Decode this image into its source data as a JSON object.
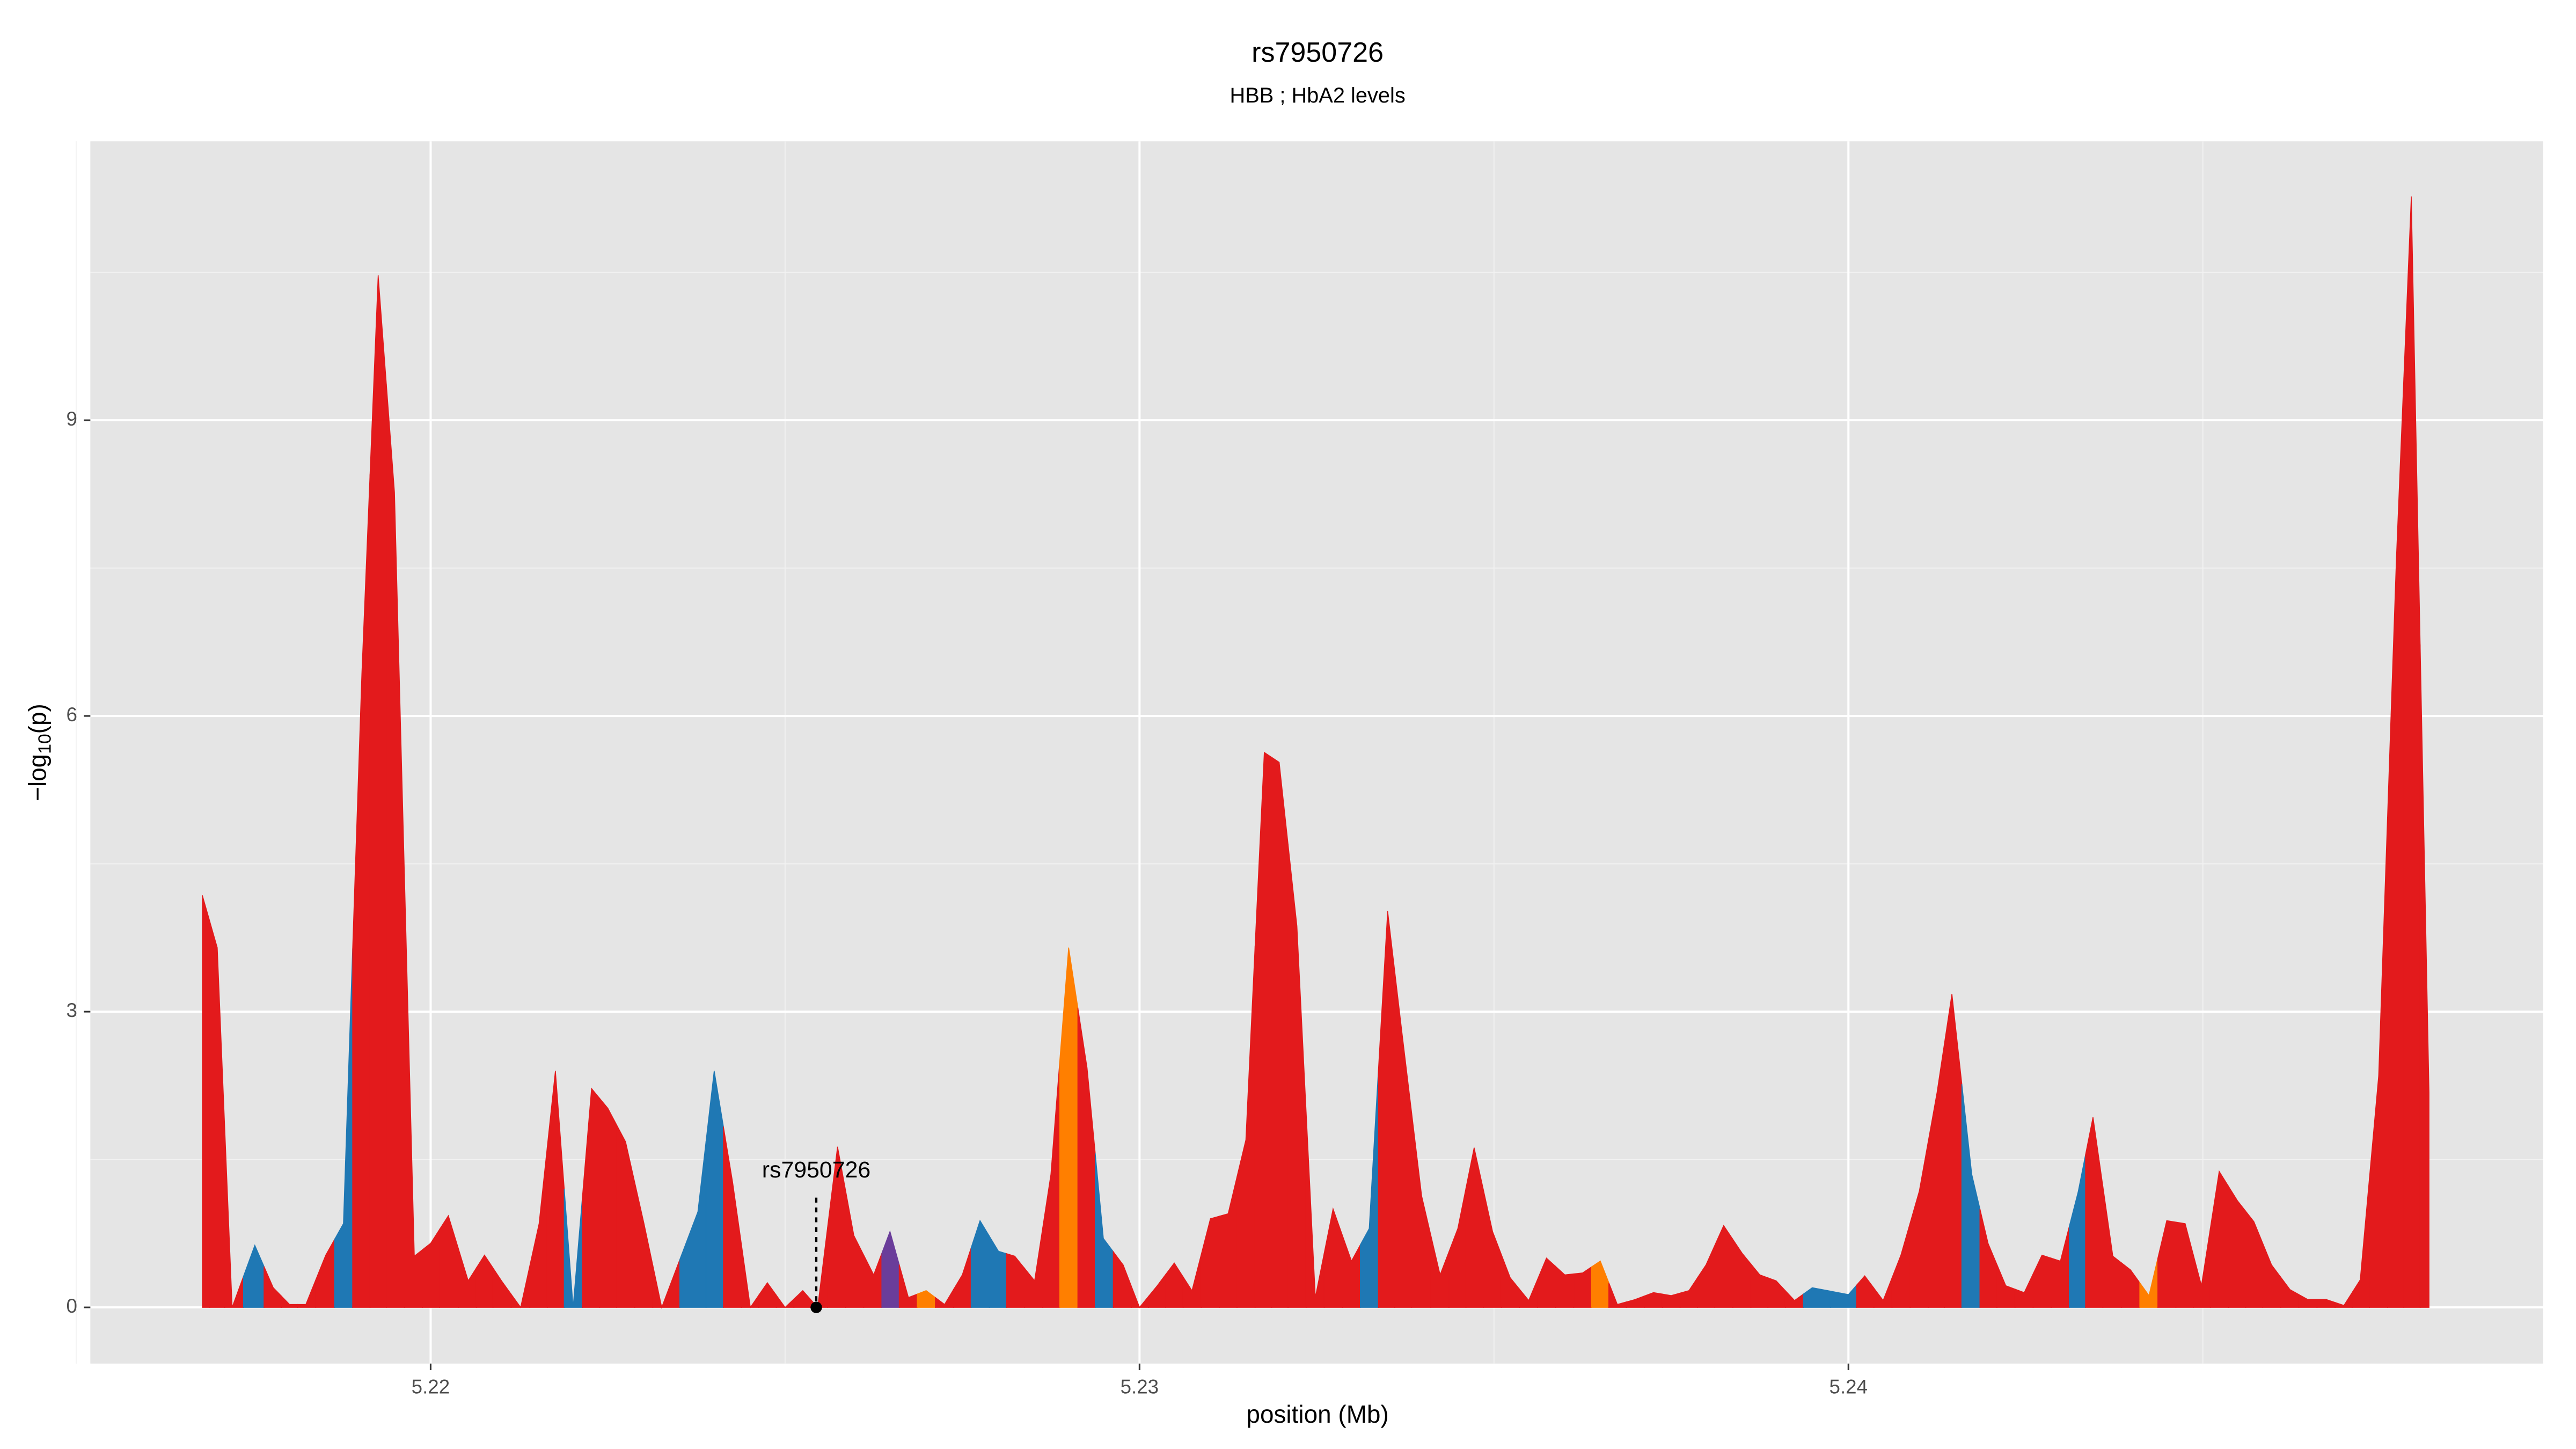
{
  "chart_data": {
    "type": "area",
    "title": "rs7950726",
    "subtitle": "HBB ; HbA2 levels",
    "xlabel": "position (Mb)",
    "ylabel": {
      "prefix": "−log",
      "subscript": "10",
      "suffix": "(p)"
    },
    "xlim": [
      5.2152,
      5.2498
    ],
    "ylim": [
      -0.57,
      11.83
    ],
    "xticks": [
      5.22,
      5.23,
      5.24
    ],
    "yticks": [
      0,
      3,
      6,
      9
    ],
    "x_minor_grid": [
      5.215,
      5.225,
      5.235,
      5.245
    ],
    "y_minor_grid": [
      1.5,
      4.5,
      7.5,
      10.5
    ],
    "grid": true,
    "series": [
      {
        "x": [
          5.21678,
          5.21699,
          5.2172,
          5.21752,
          5.21778,
          5.21801,
          5.21824,
          5.21852,
          5.21877,
          5.21903,
          5.21926,
          5.21949,
          5.21977,
          5.22,
          5.22025,
          5.22053,
          5.22076,
          5.221,
          5.22127,
          5.22153,
          5.22176,
          5.22201,
          5.22227,
          5.2225,
          5.22275,
          5.22301,
          5.22326,
          5.22377,
          5.224,
          5.22426,
          5.22451,
          5.22475,
          5.225,
          5.22525,
          5.22546,
          5.22574,
          5.22597,
          5.22625,
          5.22648,
          5.22674,
          5.22699,
          5.22725,
          5.2275,
          5.22775,
          5.22801,
          5.22824,
          5.22852,
          5.22875,
          5.229,
          5.22926,
          5.22949,
          5.22977,
          5.23,
          5.23025,
          5.23049,
          5.23074,
          5.231,
          5.23125,
          5.2315,
          5.23176,
          5.23197,
          5.23222,
          5.23248,
          5.23273,
          5.23299,
          5.23324,
          5.2335,
          5.2337,
          5.23398,
          5.23424,
          5.23449,
          5.23472,
          5.23498,
          5.23523,
          5.23549,
          5.23574,
          5.236,
          5.23625,
          5.2365,
          5.23674,
          5.23699,
          5.23725,
          5.2375,
          5.23775,
          5.23799,
          5.23824,
          5.2385,
          5.23875,
          5.23898,
          5.23924,
          5.23949,
          5.24,
          5.24023,
          5.24049,
          5.24074,
          5.241,
          5.24125,
          5.24146,
          5.24174,
          5.24197,
          5.24222,
          5.24248,
          5.24273,
          5.24299,
          5.24324,
          5.24345,
          5.24373,
          5.24398,
          5.24424,
          5.24449,
          5.24475,
          5.24498,
          5.24523,
          5.24549,
          5.24572,
          5.24597,
          5.24623,
          5.24648,
          5.24674,
          5.24699,
          5.24722,
          5.24748,
          5.24773,
          5.24794,
          5.24819
        ],
        "values": [
          4.18,
          3.65,
          0,
          0.63,
          0.2,
          0.03,
          0.03,
          0.53,
          0.85,
          6.43,
          10.47,
          8.27,
          0.52,
          0.65,
          0.93,
          0.27,
          0.53,
          0.27,
          0,
          0.85,
          2.4,
          0,
          2.22,
          2.02,
          1.68,
          0.85,
          0,
          0.97,
          2.4,
          1.27,
          0,
          0.25,
          0,
          0.17,
          0,
          1.63,
          0.73,
          0.33,
          0.77,
          0.1,
          0.17,
          0.03,
          0.33,
          0.88,
          0.57,
          0.52,
          0.27,
          1.35,
          3.65,
          2.43,
          0.7,
          0.43,
          0,
          0.22,
          0.45,
          0.17,
          0.9,
          0.95,
          1.7,
          5.63,
          5.53,
          3.87,
          0.1,
          1.0,
          0.47,
          0.8,
          4.02,
          2.8,
          1.13,
          0.33,
          0.8,
          1.62,
          0.77,
          0.3,
          0.07,
          0.5,
          0.33,
          0.35,
          0.47,
          0.03,
          0.08,
          0.15,
          0.12,
          0.17,
          0.43,
          0.83,
          0.55,
          0.33,
          0.27,
          0.07,
          0.2,
          0.13,
          0.32,
          0.07,
          0.53,
          1.18,
          2.18,
          3.18,
          1.35,
          0.65,
          0.22,
          0.15,
          0.53,
          0.47,
          1.17,
          1.93,
          0.52,
          0.38,
          0.12,
          0.88,
          0.85,
          0.22,
          1.38,
          1.08,
          0.87,
          0.43,
          0.18,
          0.08,
          0.08,
          0.02,
          0.28,
          2.35,
          7.6,
          11.27,
          2.18
        ],
        "colors": [
          "#e31a1c",
          "#e31a1c",
          "#e31a1c",
          "#1f78b4",
          "#e31a1c",
          "#e31a1c",
          "#e31a1c",
          "#e31a1c",
          "#1f78b4",
          "#e31a1c",
          "#e31a1c",
          "#e31a1c",
          "#e31a1c",
          "#e31a1c",
          "#e31a1c",
          "#e31a1c",
          "#e31a1c",
          "#e31a1c",
          "#e31a1c",
          "#e31a1c",
          "#e31a1c",
          "#1f78b4",
          "#e31a1c",
          "#e31a1c",
          "#e31a1c",
          "#e31a1c",
          "#e31a1c",
          "#1f78b4",
          "#1f78b4",
          "#e31a1c",
          "#e31a1c",
          "#e31a1c",
          "#e31a1c",
          "#e31a1c",
          "#e31a1c",
          "#e31a1c",
          "#e31a1c",
          "#e31a1c",
          "#6a3d9a",
          "#e31a1c",
          "#ff7f00",
          "#e31a1c",
          "#e31a1c",
          "#1f78b4",
          "#1f78b4",
          "#e31a1c",
          "#e31a1c",
          "#e31a1c",
          "#ff7f00",
          "#e31a1c",
          "#1f78b4",
          "#e31a1c",
          "#e31a1c",
          "#e31a1c",
          "#e31a1c",
          "#e31a1c",
          "#e31a1c",
          "#e31a1c",
          "#e31a1c",
          "#e31a1c",
          "#e31a1c",
          "#e31a1c",
          "#e31a1c",
          "#e31a1c",
          "#e31a1c",
          "#1f78b4",
          "#e31a1c",
          "#e31a1c",
          "#e31a1c",
          "#e31a1c",
          "#e31a1c",
          "#e31a1c",
          "#e31a1c",
          "#e31a1c",
          "#e31a1c",
          "#e31a1c",
          "#e31a1c",
          "#e31a1c",
          "#ff7f00",
          "#e31a1c",
          "#e31a1c",
          "#e31a1c",
          "#e31a1c",
          "#e31a1c",
          "#e31a1c",
          "#e31a1c",
          "#e31a1c",
          "#e31a1c",
          "#e31a1c",
          "#e31a1c",
          "#1f78b4",
          "#1f78b4",
          "#e31a1c",
          "#e31a1c",
          "#e31a1c",
          "#e31a1c",
          "#e31a1c",
          "#e31a1c",
          "#1f78b4",
          "#e31a1c",
          "#e31a1c",
          "#e31a1c",
          "#e31a1c",
          "#e31a1c",
          "#1f78b4",
          "#e31a1c",
          "#e31a1c",
          "#e31a1c",
          "#ff7f00",
          "#e31a1c",
          "#e31a1c",
          "#e31a1c",
          "#e31a1c",
          "#e31a1c",
          "#e31a1c",
          "#e31a1c",
          "#e31a1c",
          "#e31a1c",
          "#e31a1c",
          "#e31a1c",
          "#e31a1c",
          "#e31a1c",
          "#e31a1c",
          "#e31a1c",
          "#e31a1c"
        ]
      }
    ],
    "annotation": {
      "label": "rs7950726",
      "x": 5.22544,
      "y": 0
    }
  }
}
